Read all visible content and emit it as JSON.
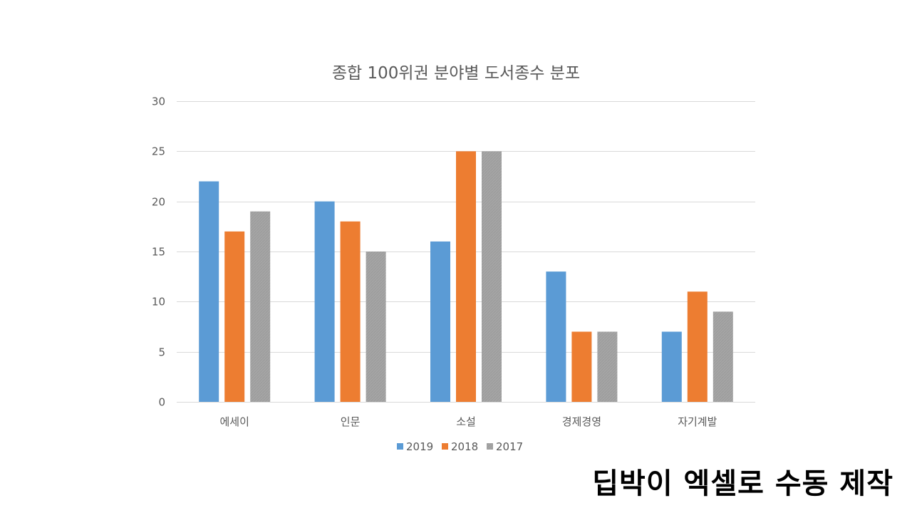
{
  "chart_data": {
    "type": "bar",
    "title": "종합 100위권 분야별 도서종수 분포",
    "categories": [
      "에세이",
      "인문",
      "소설",
      "경제경영",
      "자기계발"
    ],
    "series": [
      {
        "name": "2019",
        "values": [
          22,
          20,
          16,
          13,
          7
        ],
        "color": "#5b9bd5"
      },
      {
        "name": "2018",
        "values": [
          17,
          18,
          25,
          7,
          11
        ],
        "color": "#ed7d31"
      },
      {
        "name": "2017",
        "values": [
          19,
          15,
          25,
          7,
          9
        ],
        "color": "#a5a5a5"
      }
    ],
    "ylim": [
      0,
      30
    ],
    "yticks": [
      0,
      5,
      10,
      15,
      20,
      25,
      30
    ],
    "grid": true,
    "legend_position": "bottom"
  },
  "watermark": {
    "text": "딥박이 엑셀로 수동 제작"
  }
}
